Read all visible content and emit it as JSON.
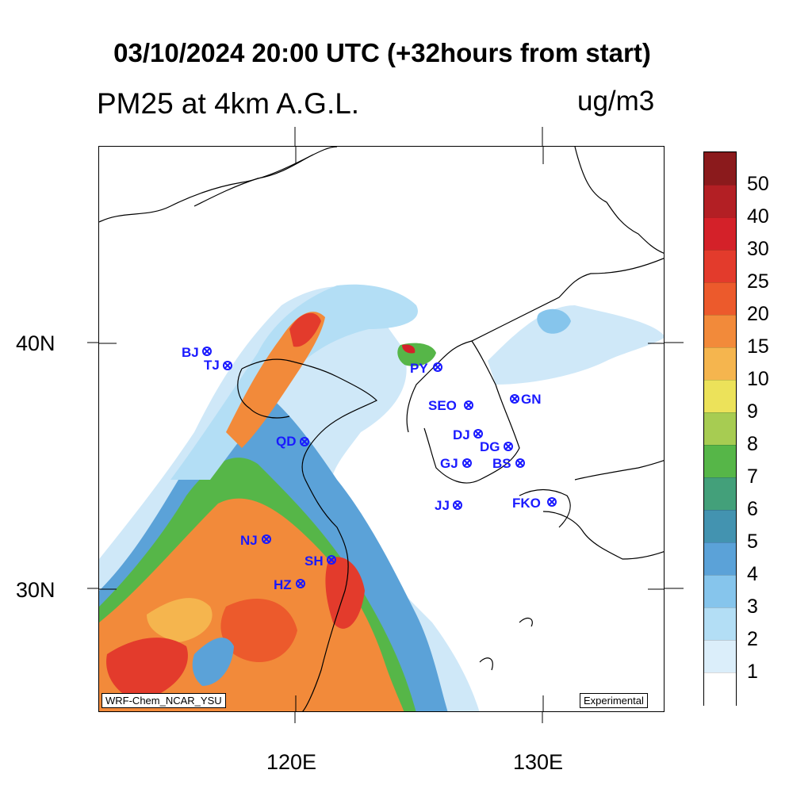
{
  "title": "03/10/2024 20:00 UTC (+32hours from start)",
  "subtitle_left": "PM25 at 4km A.G.L.",
  "subtitle_right": "ug/m3",
  "axis": {
    "y_labels": [
      "40N",
      "30N"
    ],
    "x_labels": [
      "120E",
      "130E"
    ]
  },
  "credit_text": "WRF-Chem_NCAR_YSU",
  "experimental_text": "Experimental",
  "stations": [
    "BJ",
    "TJ",
    "PY",
    "SEO",
    "GN",
    "QD",
    "DJ",
    "DG",
    "GJ",
    "BS",
    "JJ",
    "FKO",
    "NJ",
    "SH",
    "HZ"
  ],
  "legend": {
    "labels": [
      "50",
      "40",
      "30",
      "25",
      "20",
      "15",
      "10",
      "9",
      "8",
      "7",
      "6",
      "5",
      "4",
      "3",
      "2",
      "1"
    ],
    "colors": [
      "#8b1a1c",
      "#b31f24",
      "#d42129",
      "#e33b2c",
      "#ec5a2c",
      "#f28a3a",
      "#f5b54e",
      "#ece25a",
      "#a7cc52",
      "#56b648",
      "#43a07a",
      "#4393b0",
      "#5ba2d8",
      "#86c5ec",
      "#b3def5",
      "#dbeefa",
      "#ffffff"
    ]
  },
  "colors": {
    "station": "#1a1aff"
  }
}
